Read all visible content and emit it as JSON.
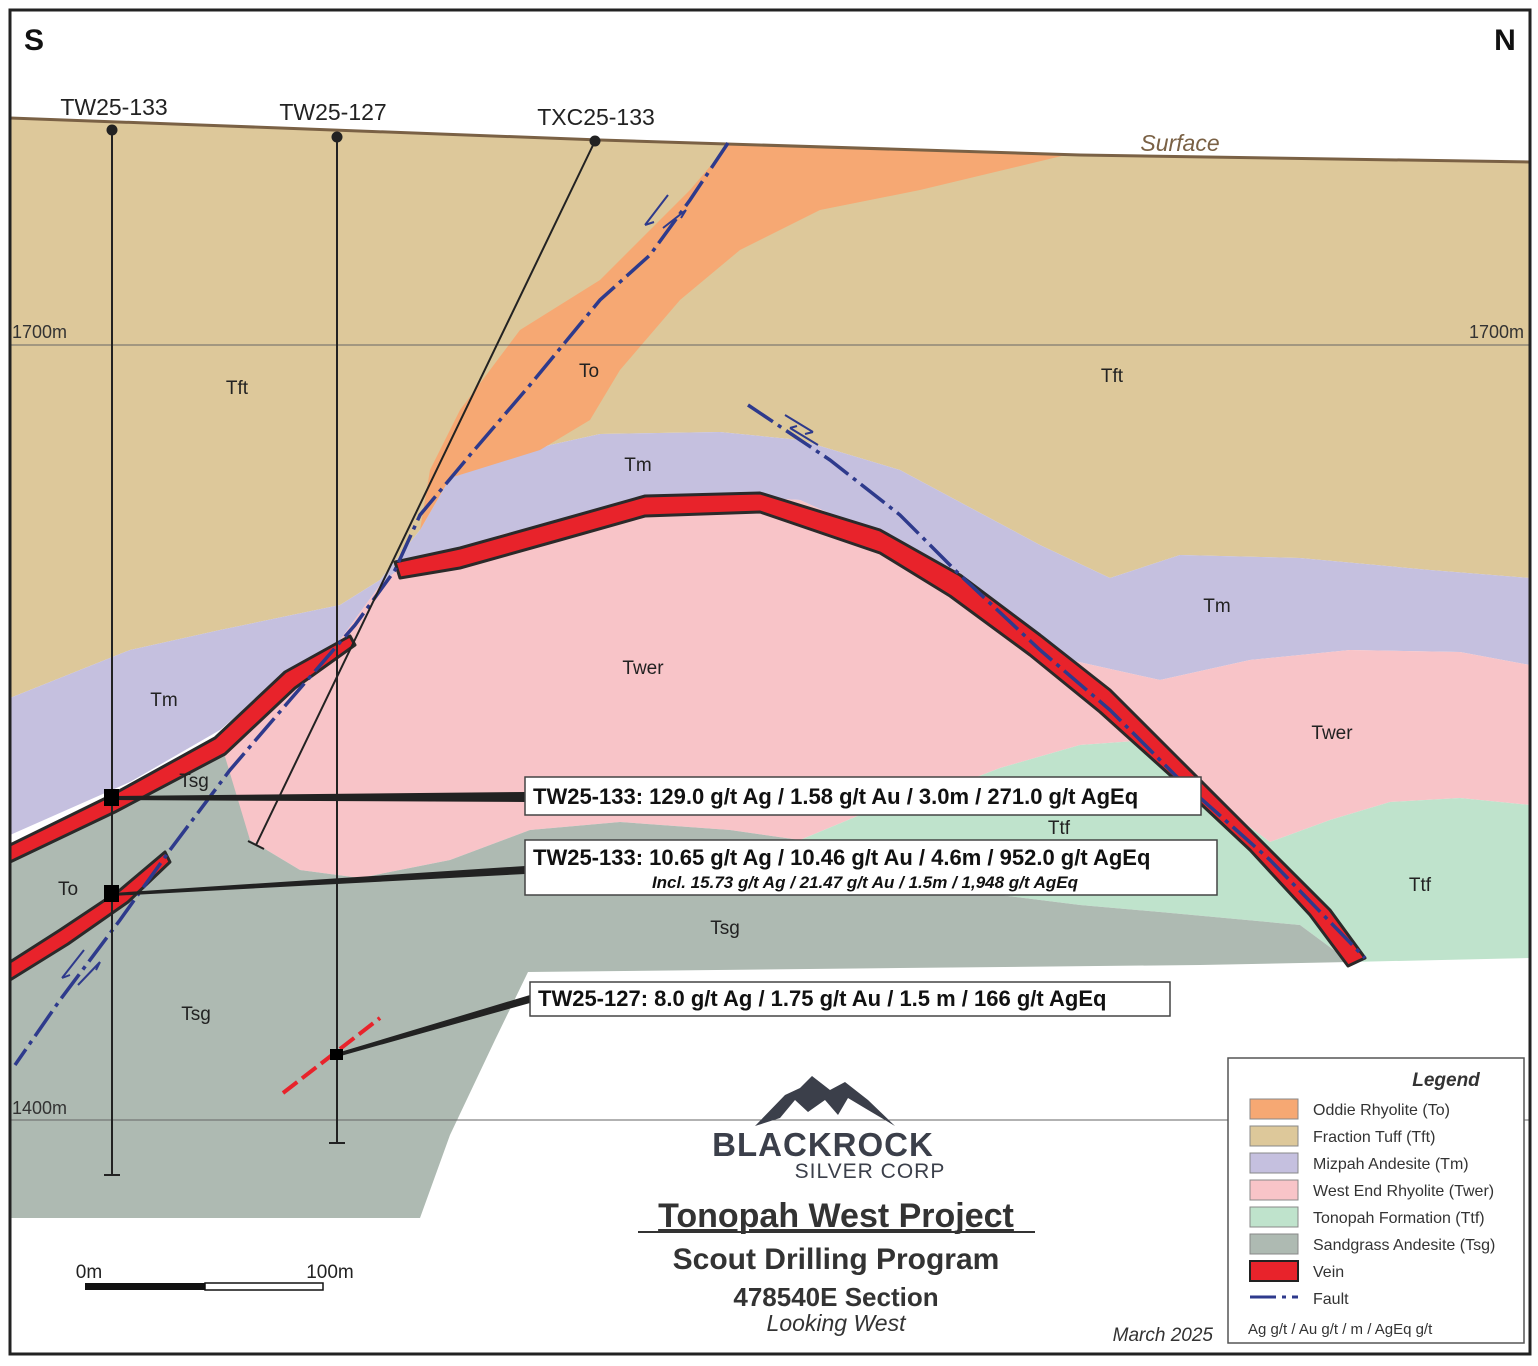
{
  "compass": {
    "south": "S",
    "north": "N"
  },
  "elevations": {
    "upper": "1700m",
    "lower": "1400m"
  },
  "surface_label": "Surface",
  "drillholes": [
    {
      "name": "TW25-133"
    },
    {
      "name": "TW25-127"
    },
    {
      "name": "TXC25-133"
    }
  ],
  "units": {
    "tft": "Tft",
    "to": "To",
    "tm": "Tm",
    "twer": "Twer",
    "tsg": "Tsg",
    "ttf": "Ttf"
  },
  "intercepts": {
    "a": "TW25-133: 129.0 g/t Ag / 1.58 g/t Au / 3.0m / 271.0 g/t AgEq",
    "b": "TW25-133: 10.65 g/t Ag / 10.46 g/t Au / 4.6m / 952.0 g/t AgEq",
    "b_incl": "Incl. 15.73 g/t Ag / 21.47 g/t Au / 1.5m / 1,948 g/t AgEq",
    "c": "TW25-127: 8.0 g/t Ag / 1.75 g/t Au / 1.5 m / 166 g/t AgEq"
  },
  "legend": {
    "title": "Legend",
    "items": [
      {
        "label": "Oddie Rhyolite (To)",
        "color": "#f6a873"
      },
      {
        "label": "Fraction Tuff (Tft)",
        "color": "#ddc89a"
      },
      {
        "label": "Mizpah Andesite (Tm)",
        "color": "#c5c0df"
      },
      {
        "label": "West End Rhyolite (Twer)",
        "color": "#f8c4c8"
      },
      {
        "label": "Tonopah Formation (Ttf)",
        "color": "#bfe3cc"
      },
      {
        "label": "Sandgrass Andesite (Tsg)",
        "color": "#aebab2"
      },
      {
        "label": "Vein",
        "color": "#e8232b"
      },
      {
        "label": "Fault",
        "color": "#2e3a8c"
      }
    ],
    "units_note": "Ag g/t / Au g/t / m / AgEq g/t"
  },
  "scale_bar": {
    "start": "0m",
    "end": "100m"
  },
  "logo": {
    "line1": "BLACKROCK",
    "line2": "SILVER CORP"
  },
  "title": {
    "project": "Tonopah West Project",
    "program": "Scout Drilling Program",
    "section": "478540E Section",
    "view": "Looking West"
  },
  "date": "March 2025"
}
